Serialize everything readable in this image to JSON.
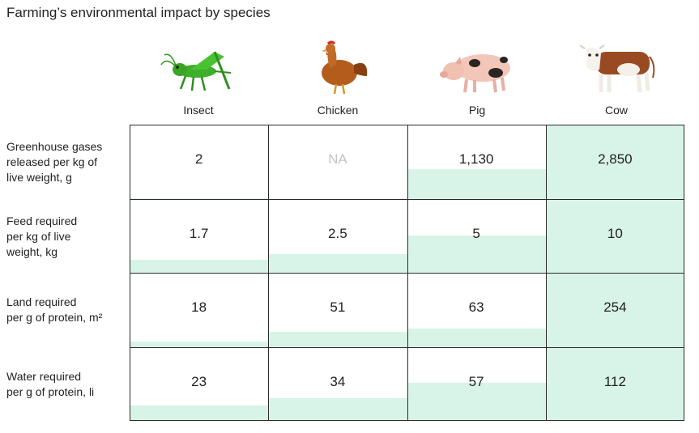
{
  "title": "Farming’s environmental impact by species",
  "chart_data": {
    "type": "table",
    "title": "Farming’s environmental impact by species",
    "columns": [
      {
        "name": "Insect",
        "icon": "grasshopper-icon"
      },
      {
        "name": "Chicken",
        "icon": "chicken-icon"
      },
      {
        "name": "Pig",
        "icon": "pig-icon"
      },
      {
        "name": "Cow",
        "icon": "cow-icon"
      }
    ],
    "rows": [
      {
        "label": [
          "Greenhouse gases",
          "released per kg of",
          "live weight, g"
        ],
        "cells": [
          "2",
          "NA",
          "1,130",
          "2,850"
        ],
        "values": [
          2,
          null,
          1130,
          2850
        ],
        "max": 2850
      },
      {
        "label": [
          "Feed required",
          "per kg of live",
          "weight, kg"
        ],
        "cells": [
          "1.7",
          "2.5",
          "5",
          "10"
        ],
        "values": [
          1.7,
          2.5,
          5,
          10
        ],
        "max": 10
      },
      {
        "label": [
          "Land required",
          "per g of protein, m²"
        ],
        "cells": [
          "18",
          "51",
          "63",
          "254"
        ],
        "values": [
          18,
          51,
          63,
          254
        ],
        "max": 254
      },
      {
        "label": [
          "Water required",
          "per g of protein, li"
        ],
        "cells": [
          "23",
          "34",
          "57",
          "112"
        ],
        "values": [
          23,
          34,
          57,
          112
        ],
        "max": 112
      }
    ],
    "fill_color": "#d8f3e7",
    "grid_color": "#2b2b2b",
    "na_color": "#c4c4c4"
  }
}
